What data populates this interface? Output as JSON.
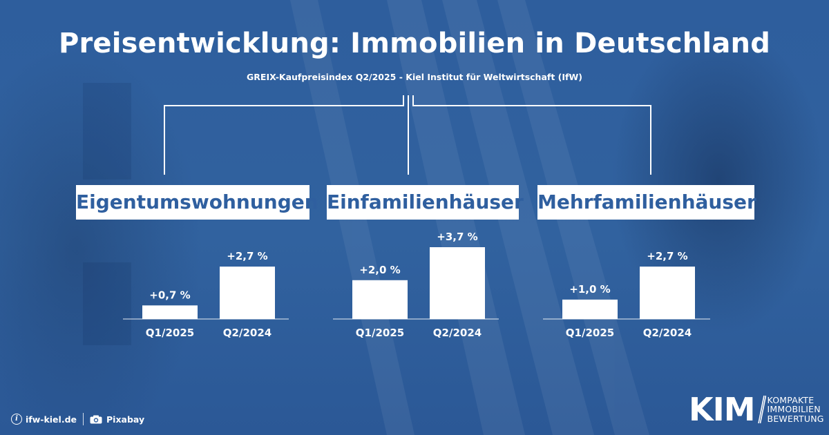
{
  "title": "Preisentwicklung: Immobilien in Deutschland",
  "subtitle": "GREIX-Kaufpreisindex Q2/2025 - Kiel Institut für Weltwirtschaft (IfW)",
  "chart_data": [
    {
      "type": "bar",
      "title": "Eigentumswohnungen",
      "categories": [
        "Q1/2025",
        "Q2/2024"
      ],
      "values": [
        0.7,
        2.7
      ],
      "value_labels": [
        "+0,7 %",
        "+2,7 %"
      ]
    },
    {
      "type": "bar",
      "title": "Einfamilienhäuser",
      "categories": [
        "Q1/2025",
        "Q2/2024"
      ],
      "values": [
        2.0,
        3.7
      ],
      "value_labels": [
        "+2,0 %",
        "+3,7 %"
      ]
    },
    {
      "type": "bar",
      "title": "Mehrfamilienhäuser",
      "categories": [
        "Q1/2025",
        "Q2/2024"
      ],
      "values": [
        1.0,
        2.7
      ],
      "value_labels": [
        "+1,0 %",
        "+2,7 %"
      ]
    }
  ],
  "footer": {
    "source": "ifw-kiel.de",
    "photo": "Pixabay",
    "source_icon": "info-icon",
    "photo_icon": "camera-icon"
  },
  "logo": {
    "mark": "KIM",
    "lines": [
      "KOMPAKTE",
      "IMMOBILIEN",
      "BEWERTUNG"
    ]
  },
  "colors": {
    "background": "#2f5f9f",
    "bar": "#ffffff",
    "label_text": "#2f5f9f"
  }
}
